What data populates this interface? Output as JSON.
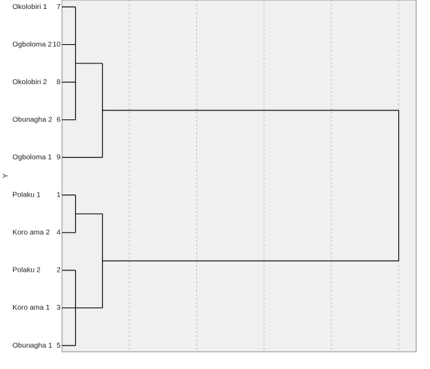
{
  "chart_data": {
    "type": "dendrogram",
    "y_label": "Y",
    "leaves": [
      {
        "label": "Okolobiri 1",
        "case": 7
      },
      {
        "label": "Ogboloma 2",
        "case": 10
      },
      {
        "label": "Okolobiri 2",
        "case": 8
      },
      {
        "label": "Obunagha 2",
        "case": 6
      },
      {
        "label": "Ogboloma 1",
        "case": 9
      },
      {
        "label": "Polaku 1",
        "case": 1
      },
      {
        "label": "Koro ama 2",
        "case": 4
      },
      {
        "label": "Polaku 2",
        "case": 2
      },
      {
        "label": "Koro ama 1",
        "case": 3
      },
      {
        "label": "Obunagha 1",
        "case": 5
      }
    ],
    "merges": [
      {
        "leaves": [
          0,
          1,
          2,
          3
        ],
        "height": 1
      },
      {
        "leaves": [
          5,
          6
        ],
        "height": 1
      },
      {
        "leaves": [
          7,
          8,
          9
        ],
        "height": 1
      },
      {
        "leaves": [
          0,
          1,
          2,
          3,
          4
        ],
        "height": 3
      },
      {
        "leaves": [
          5,
          6,
          7,
          8,
          9
        ],
        "height": 3
      },
      {
        "leaves": [
          0,
          1,
          2,
          3,
          4,
          5,
          6,
          7,
          8,
          9
        ],
        "height": 25
      }
    ],
    "xlim": [
      0,
      26.3
    ],
    "xticks": [
      5,
      10,
      15,
      20,
      25
    ],
    "grid": true,
    "color": "#000000"
  }
}
